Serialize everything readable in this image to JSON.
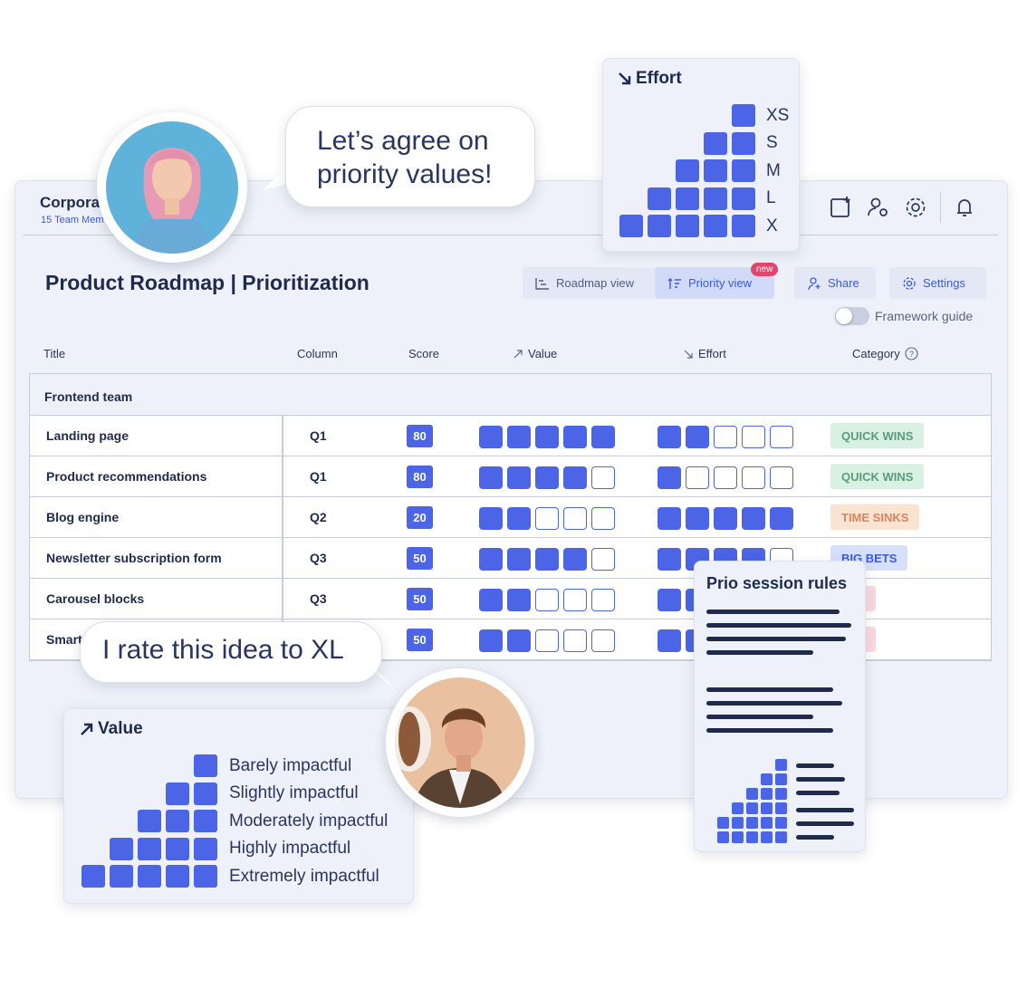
{
  "workspace": {
    "name": "Corpora",
    "members": "15 Team Mem"
  },
  "page_title": "Product Roadmap | Prioritization",
  "views": {
    "roadmap": "Roadmap view",
    "priority": "Priority view",
    "new_badge": "new"
  },
  "actions": {
    "share": "Share",
    "settings": "Settings"
  },
  "framework_guide": {
    "label": "Framework guide",
    "enabled": false
  },
  "columns": {
    "title": "Title",
    "column": "Column",
    "score": "Score",
    "value": "Value",
    "effort": "Effort",
    "category": "Category"
  },
  "group": "Frontend team",
  "rows": [
    {
      "title": "Landing page",
      "column": "Q1",
      "score": "80",
      "value": 5,
      "effort": 2,
      "category": "QUICK WINS"
    },
    {
      "title": "Product recommendations",
      "column": "Q1",
      "score": "80",
      "value": 4,
      "effort": 1,
      "category": "QUICK WINS"
    },
    {
      "title": "Blog engine",
      "column": "Q2",
      "score": "20",
      "value": 2,
      "effort": 5,
      "category": "TIME SINKS"
    },
    {
      "title": "Newsletter subscription form",
      "column": "Q3",
      "score": "50",
      "value": 4,
      "effort": 4,
      "category": "BIG BETS"
    },
    {
      "title": "Carousel blocks",
      "column": "Q3",
      "score": "50",
      "value": 2,
      "effort": 2,
      "category": "-INS"
    },
    {
      "title": "Smart",
      "column": "",
      "score": "50",
      "value": 2,
      "effort": 2,
      "category": "-INS"
    }
  ],
  "category_colors": {
    "QUICK WINS": {
      "bg": "#d8f1e3",
      "fg": "#5a9c78"
    },
    "TIME SINKS": {
      "bg": "#fbe3d2",
      "fg": "#d9855a"
    },
    "BIG BETS": {
      "bg": "#d7e0fb",
      "fg": "#3b5bdb"
    },
    "-INS": {
      "bg": "#fadadf",
      "fg": "#d9637a"
    }
  },
  "bubbles": {
    "agree": "Let’s agree on priority values!",
    "rate": "I rate this idea to XL"
  },
  "effort_legend": {
    "title": "Effort",
    "levels": [
      "XS",
      "S",
      "M",
      "L",
      "X"
    ]
  },
  "value_legend": {
    "title": "Value",
    "levels": [
      "Barely impactful",
      "Slightly impactful",
      "Moderately impactful",
      "Highly impactful",
      "Extremely impactful"
    ]
  },
  "rules": {
    "title": "Prio session rules"
  },
  "colors": {
    "accent": "#4b65e6",
    "navy": "#1f2a4d",
    "panel": "#eef1f9"
  }
}
